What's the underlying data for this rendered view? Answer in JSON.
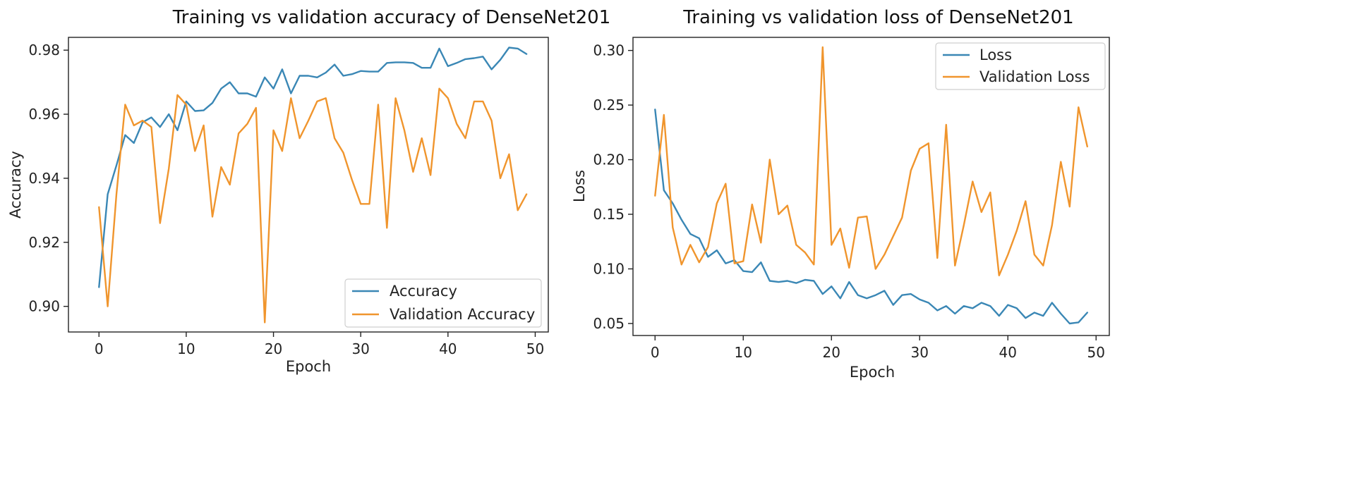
{
  "chart_data": [
    {
      "type": "line",
      "title": "Training vs validation accuracy of DenseNet201",
      "xlabel": "Epoch",
      "ylabel": "Accuracy",
      "xlim": [
        -3.5,
        51.5
      ],
      "ylim": [
        0.892,
        0.984
      ],
      "xticks": [
        0,
        10,
        20,
        30,
        40,
        50
      ],
      "yticks": [
        0.9,
        0.92,
        0.94,
        0.96,
        0.98
      ],
      "ytick_labels": [
        "0.90",
        "0.92",
        "0.94",
        "0.96",
        "0.98"
      ],
      "legend_position": "lower-right",
      "grid": false,
      "x": [
        0,
        1,
        2,
        3,
        4,
        5,
        6,
        7,
        8,
        9,
        10,
        11,
        12,
        13,
        14,
        15,
        16,
        17,
        18,
        19,
        20,
        21,
        22,
        23,
        24,
        25,
        26,
        27,
        28,
        29,
        30,
        31,
        32,
        33,
        34,
        35,
        36,
        37,
        38,
        39,
        40,
        41,
        42,
        43,
        44,
        45,
        46,
        47,
        48,
        49
      ],
      "series": [
        {
          "name": "Accuracy",
          "color": "#3a87b5",
          "values": [
            0.906,
            0.935,
            0.944,
            0.9535,
            0.951,
            0.9575,
            0.959,
            0.956,
            0.96,
            0.955,
            0.964,
            0.961,
            0.9612,
            0.9635,
            0.968,
            0.97,
            0.9665,
            0.9665,
            0.9655,
            0.9715,
            0.968,
            0.974,
            0.9665,
            0.972,
            0.972,
            0.9715,
            0.973,
            0.9755,
            0.972,
            0.9725,
            0.9735,
            0.9733,
            0.9733,
            0.976,
            0.9762,
            0.9762,
            0.976,
            0.9745,
            0.9745,
            0.9805,
            0.975,
            0.976,
            0.9772,
            0.9775,
            0.978,
            0.974,
            0.977,
            0.9808,
            0.9805,
            0.9788
          ]
        },
        {
          "name": "Validation Accuracy",
          "color": "#f0952d",
          "values": [
            0.931,
            0.9,
            0.935,
            0.963,
            0.9565,
            0.958,
            0.956,
            0.926,
            0.943,
            0.966,
            0.963,
            0.9485,
            0.9565,
            0.928,
            0.9435,
            0.938,
            0.954,
            0.957,
            0.962,
            0.895,
            0.955,
            0.9485,
            0.965,
            0.9525,
            0.958,
            0.964,
            0.965,
            0.9525,
            0.948,
            0.9395,
            0.932,
            0.932,
            0.963,
            0.9245,
            0.965,
            0.955,
            0.942,
            0.9525,
            0.941,
            0.968,
            0.965,
            0.957,
            0.9525,
            0.964,
            0.964,
            0.958,
            0.94,
            0.9475,
            0.93,
            0.935
          ]
        }
      ]
    },
    {
      "type": "line",
      "title": "Training vs validation loss of DenseNet201",
      "xlabel": "Epoch",
      "ylabel": "Loss",
      "xlim": [
        -2.5,
        51.5
      ],
      "ylim": [
        0.039,
        0.312
      ],
      "xticks": [
        0,
        10,
        20,
        30,
        40,
        50
      ],
      "yticks": [
        0.05,
        0.1,
        0.15,
        0.2,
        0.25,
        0.3
      ],
      "ytick_labels": [
        "0.05",
        "0.10",
        "0.15",
        "0.20",
        "0.25",
        "0.30"
      ],
      "legend_position": "upper-right",
      "grid": false,
      "x": [
        0,
        1,
        2,
        3,
        4,
        5,
        6,
        7,
        8,
        9,
        10,
        11,
        12,
        13,
        14,
        15,
        16,
        17,
        18,
        19,
        20,
        21,
        22,
        23,
        24,
        25,
        26,
        27,
        28,
        29,
        30,
        31,
        32,
        33,
        34,
        35,
        36,
        37,
        38,
        39,
        40,
        41,
        42,
        43,
        44,
        45,
        46,
        47,
        48,
        49
      ],
      "series": [
        {
          "name": "Loss",
          "color": "#3a87b5",
          "values": [
            0.246,
            0.172,
            0.16,
            0.145,
            0.132,
            0.128,
            0.111,
            0.117,
            0.105,
            0.108,
            0.098,
            0.097,
            0.106,
            0.089,
            0.088,
            0.089,
            0.087,
            0.09,
            0.089,
            0.077,
            0.084,
            0.073,
            0.088,
            0.076,
            0.073,
            0.076,
            0.08,
            0.067,
            0.076,
            0.077,
            0.072,
            0.069,
            0.062,
            0.066,
            0.059,
            0.066,
            0.064,
            0.069,
            0.066,
            0.057,
            0.067,
            0.064,
            0.055,
            0.06,
            0.057,
            0.069,
            0.059,
            0.05,
            0.051,
            0.06
          ]
        },
        {
          "name": "Validation Loss",
          "color": "#f0952d",
          "values": [
            0.167,
            0.241,
            0.138,
            0.104,
            0.122,
            0.106,
            0.12,
            0.16,
            0.178,
            0.105,
            0.107,
            0.159,
            0.124,
            0.2,
            0.15,
            0.158,
            0.122,
            0.115,
            0.104,
            0.303,
            0.122,
            0.137,
            0.101,
            0.147,
            0.148,
            0.1,
            0.113,
            0.13,
            0.147,
            0.19,
            0.21,
            0.215,
            0.11,
            0.232,
            0.103,
            0.14,
            0.18,
            0.152,
            0.17,
            0.094,
            0.113,
            0.135,
            0.162,
            0.113,
            0.103,
            0.14,
            0.198,
            0.157,
            0.248,
            0.212
          ]
        }
      ]
    }
  ]
}
